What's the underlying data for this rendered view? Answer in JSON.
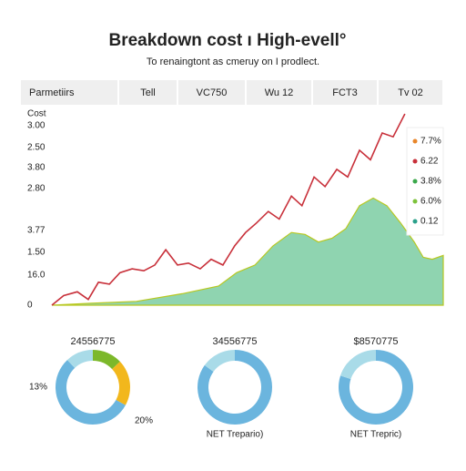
{
  "header": {
    "title": "Breakdown cost ı High-evell°",
    "subtitle": "To renaingtont as cmeruy on I prodlect."
  },
  "tabs": [
    "Parmetiirs",
    "Tell",
    "VC750",
    "Wu 12",
    "FCT3",
    "Tv 02"
  ],
  "chart_data": [
    {
      "type": "line",
      "y_axis_labels": [
        "Cost",
        "3.00",
        "2.50",
        "3.80",
        "2.80",
        "3.77",
        "1.50",
        "16.0",
        "0"
      ],
      "xlim": [
        0,
        100
      ],
      "ylim": [
        0,
        100
      ],
      "series": [
        {
          "color": "#c8303a",
          "fill": false,
          "x": [
            0,
            3,
            6.5,
            9.3,
            11.9,
            14.7,
            17.4,
            20.5,
            23.5,
            26.3,
            29.1,
            32.1,
            34.9,
            37.9,
            40.7,
            43.7,
            46.7,
            49.5,
            52.3,
            55.3,
            58.1,
            61.2,
            63.9,
            67,
            69.8,
            72.8,
            75.6,
            78.6,
            81.4,
            84.4,
            87.2,
            90.2
          ],
          "values": [
            0,
            5,
            7,
            3,
            12,
            11,
            17,
            19,
            18,
            21,
            29,
            21,
            22,
            19,
            24,
            21,
            31,
            38,
            43,
            49,
            45,
            57,
            52,
            67,
            62,
            71,
            67,
            81,
            76,
            90,
            88,
            100
          ]
        },
        {
          "color": "#8fd4b0",
          "fill": true,
          "x": [
            0,
            10,
            21.6,
            33.3,
            42.6,
            47.2,
            51.9,
            56.5,
            61.2,
            64.7,
            68.1,
            71.6,
            75.1,
            78.6,
            82.1,
            85.6,
            89.1,
            92.6,
            94.9,
            97.2,
            100
          ],
          "values": [
            0,
            1,
            2,
            6,
            10,
            17,
            21,
            31,
            38,
            37,
            33,
            35,
            40,
            52,
            56,
            52,
            43,
            33,
            25,
            24,
            26
          ]
        }
      ],
      "annotations": [
        {
          "text": "7.7%",
          "color": "#e8862a"
        },
        {
          "text": "6.22",
          "color": "#c8303a"
        },
        {
          "text": "3.8%",
          "color": "#3aa84a"
        },
        {
          "text": "6.0%",
          "color": "#7cc23a"
        },
        {
          "text": "0.12",
          "color": "#2aa08a"
        }
      ]
    },
    {
      "type": "pie",
      "title": "24556775",
      "values": [
        13,
        20,
        55,
        12
      ],
      "value_labels": [
        "13%",
        "20%",
        null,
        null
      ],
      "colors": [
        "#7cb82a",
        "#f2b71c",
        "#6bb5de",
        "#a9dbe8"
      ]
    },
    {
      "type": "pie",
      "title": "34556775",
      "label": "NET Trepario)",
      "values": [
        85,
        15
      ],
      "colors": [
        "#6bb5de",
        "#a9dbe8"
      ]
    },
    {
      "type": "pie",
      "title": "$8570775",
      "label": "NET Trepric)",
      "values": [
        80,
        20
      ],
      "colors": [
        "#6bb5de",
        "#a9dbe8"
      ]
    }
  ]
}
